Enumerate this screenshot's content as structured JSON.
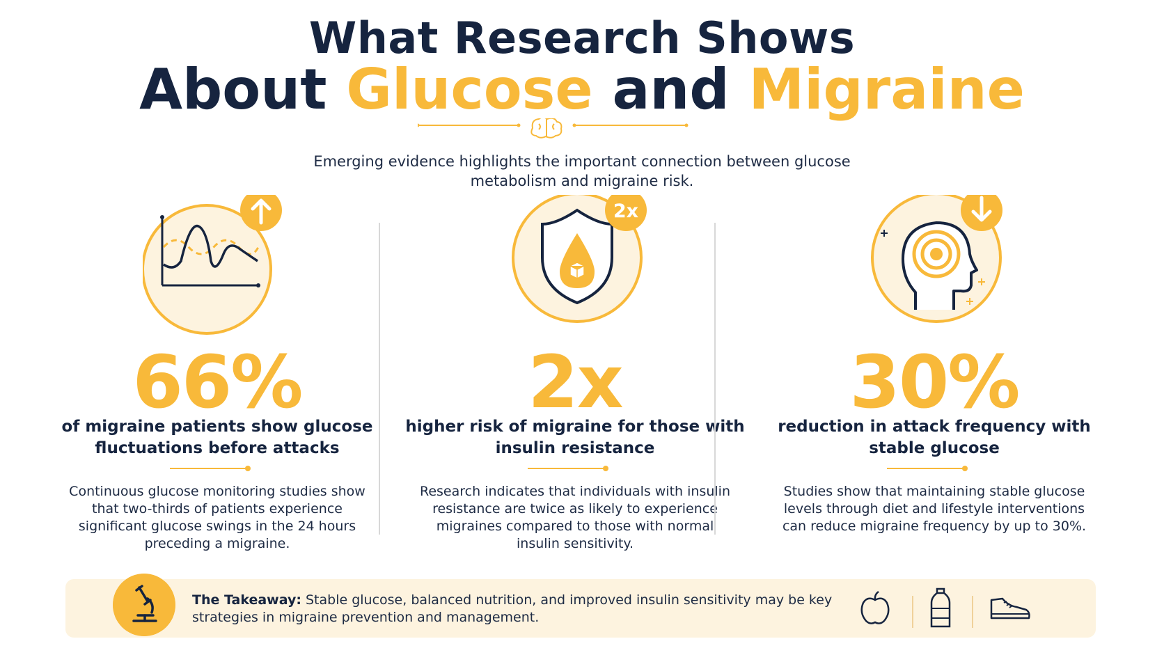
{
  "header": {
    "title_line1": "What Research Shows",
    "title_line2_a": "About ",
    "title_line2_b": "Glucose",
    "title_line2_c": " and ",
    "title_line2_d": "Migraine",
    "subtitle": "Emerging evidence highlights the important connection between glucose metabolism and migraine risk."
  },
  "stats": [
    {
      "icon": "glucose-wave-chart-icon",
      "badge": "arrow-up",
      "value": "66%",
      "headline": "of migraine patients show glucose fluctuations before attacks",
      "body": "Continuous glucose monitoring studies show that two-thirds of patients experience significant glucose swings in the 24 hours preceding a migraine."
    },
    {
      "icon": "shield-glucose-drop-icon",
      "badge": "2x",
      "value": "2x",
      "headline": "higher risk of migraine for those with insulin resistance",
      "body": "Research indicates that individuals with insulin resistance are twice as likely to experience migraines compared to those with normal insulin sensitivity."
    },
    {
      "icon": "head-target-icon",
      "badge": "arrow-down",
      "value": "30%",
      "headline": "reduction in attack frequency with stable glucose",
      "body": "Studies show that maintaining stable glucose levels through diet and lifestyle interventions can reduce migraine frequency by up to 30%."
    }
  ],
  "takeaway": {
    "label": "The Takeaway:",
    "text": " Stable glucose, balanced nutrition, and improved insulin sensitivity may be key strategies in migraine prevention and management.",
    "icons": [
      "microscope-icon",
      "apple-icon",
      "water-bottle-icon",
      "sneaker-icon"
    ]
  },
  "colors": {
    "navy": "#16243f",
    "accent": "#f8b93a",
    "takeaway_bg": "#fdf3df"
  }
}
